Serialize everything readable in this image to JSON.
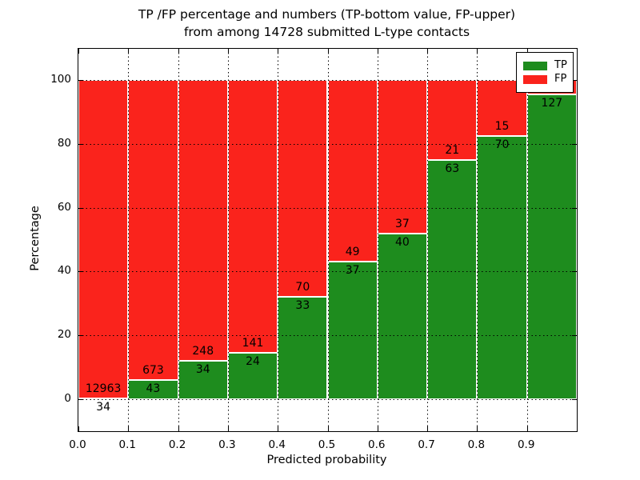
{
  "figure": {
    "title_line1": "TP /FP percentage and numbers (TP-bottom value, FP-upper)",
    "title_line2": "from among 14728 submitted L-type contacts"
  },
  "chart_data": {
    "type": "bar",
    "subtype": "stacked-percentage-histogram",
    "title": "TP /FP percentage and numbers (TP-bottom value, FP-upper) from among 14728 submitted L-type contacts",
    "total_submitted_contacts": 14728,
    "xlabel": "Predicted probability",
    "ylabel": "Percentage",
    "xlim": [
      0.0,
      1.0
    ],
    "ylim": [
      -10,
      110
    ],
    "x_tick_labels": [
      "0.0",
      "0.1",
      "0.2",
      "0.3",
      "0.4",
      "0.5",
      "0.6",
      "0.7",
      "0.8",
      "0.9"
    ],
    "y_tick_values": [
      0,
      20,
      40,
      60,
      80,
      100
    ],
    "y_tick_labels": [
      "0",
      "20",
      "40",
      "60",
      "80",
      "100"
    ],
    "grid": true,
    "grid_style": "dotted",
    "colors": {
      "tp": "#1e8c1e",
      "fp": "#fa231c"
    },
    "legend": {
      "position": "upper-right",
      "entries": [
        {
          "label": "TP",
          "color": "#1e8c1e"
        },
        {
          "label": "FP",
          "color": "#fa231c"
        }
      ]
    },
    "bins": [
      {
        "x_start": 0.0,
        "x_end": 0.1,
        "tp_count": 34,
        "fp_count": 12963,
        "tp_percent": 0.3
      },
      {
        "x_start": 0.1,
        "x_end": 0.2,
        "tp_count": 43,
        "fp_count": 673,
        "tp_percent": 6.0
      },
      {
        "x_start": 0.2,
        "x_end": 0.3,
        "tp_count": 34,
        "fp_count": 248,
        "tp_percent": 12.1
      },
      {
        "x_start": 0.3,
        "x_end": 0.4,
        "tp_count": 24,
        "fp_count": 141,
        "tp_percent": 14.5
      },
      {
        "x_start": 0.4,
        "x_end": 0.5,
        "tp_count": 33,
        "fp_count": 70,
        "tp_percent": 32.0
      },
      {
        "x_start": 0.5,
        "x_end": 0.6,
        "tp_count": 37,
        "fp_count": 49,
        "tp_percent": 43.0
      },
      {
        "x_start": 0.6,
        "x_end": 0.7,
        "tp_count": 40,
        "fp_count": 37,
        "tp_percent": 51.9
      },
      {
        "x_start": 0.7,
        "x_end": 0.8,
        "tp_count": 63,
        "fp_count": 21,
        "tp_percent": 75.0
      },
      {
        "x_start": 0.8,
        "x_end": 0.9,
        "tp_count": 70,
        "fp_count": 15,
        "tp_percent": 82.4
      },
      {
        "x_start": 0.9,
        "x_end": 1.0,
        "tp_count": 127,
        "fp_count": null,
        "tp_percent": 95.5
      }
    ]
  }
}
